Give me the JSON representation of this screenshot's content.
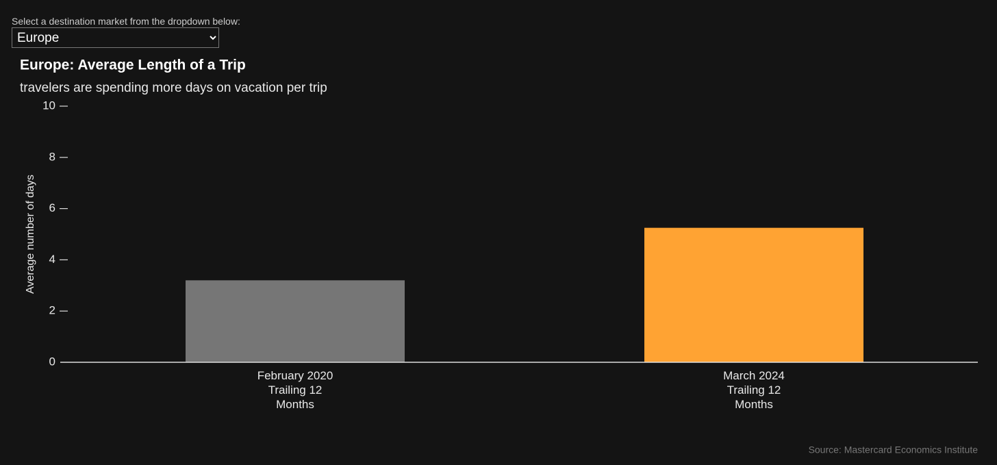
{
  "controls": {
    "label": "Select a destination market from the dropdown below:",
    "selected": "Europe"
  },
  "chart_data": {
    "type": "bar",
    "title": "Europe: Average Length of a Trip",
    "subtitle": "travelers are spending more days on vacation per trip",
    "y_label": "Average number of days",
    "categories": [
      "February 2020 Trailing 12 Months",
      "March 2024 Trailing 12 Months"
    ],
    "values": [
      3.2,
      5.25
    ],
    "colors": [
      "#767676",
      "#ffa333"
    ],
    "ylim": [
      0,
      10
    ],
    "yticks": [
      0,
      2,
      4,
      6,
      8,
      10
    ],
    "grid": false,
    "source": "Source: Mastercard Economics Institute"
  }
}
